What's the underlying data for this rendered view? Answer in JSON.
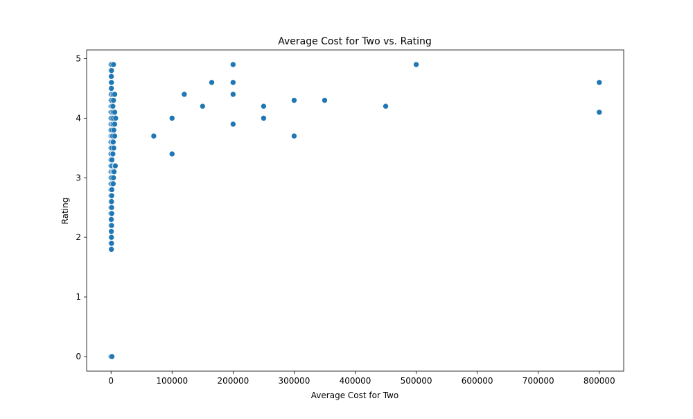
{
  "chart_data": {
    "type": "scatter",
    "title": "Average Cost for Two vs. Rating",
    "xlabel": "Average Cost for Two",
    "ylabel": "Rating",
    "xlim": [
      -40000,
      840000
    ],
    "ylim": [
      -0.245,
      5.145
    ],
    "xticks": [
      0,
      100000,
      200000,
      300000,
      400000,
      500000,
      600000,
      700000,
      800000
    ],
    "yticks": [
      0,
      1,
      2,
      3,
      4,
      5
    ],
    "grid": false,
    "legend": "none",
    "color": "#1f77b4",
    "points": [
      [
        0,
        0
      ],
      [
        1500,
        0
      ],
      [
        0,
        1.8
      ],
      [
        600,
        1.8
      ],
      [
        0,
        1.9
      ],
      [
        800,
        1.9
      ],
      [
        0,
        2.0
      ],
      [
        700,
        2.0
      ],
      [
        0,
        2.1
      ],
      [
        500,
        2.1
      ],
      [
        0,
        2.2
      ],
      [
        900,
        2.2
      ],
      [
        0,
        2.3
      ],
      [
        400,
        2.3
      ],
      [
        0,
        2.4
      ],
      [
        1200,
        2.4
      ],
      [
        0,
        2.5
      ],
      [
        1000,
        2.5
      ],
      [
        0,
        2.6
      ],
      [
        800,
        2.6
      ],
      [
        0,
        2.7
      ],
      [
        1100,
        2.7
      ],
      [
        0,
        2.8
      ],
      [
        1300,
        2.8
      ],
      [
        0,
        2.9
      ],
      [
        1500,
        2.9
      ],
      [
        0,
        3.0
      ],
      [
        1200,
        3.0
      ],
      [
        0,
        3.1
      ],
      [
        2000,
        3.1
      ],
      [
        0,
        3.2
      ],
      [
        1800,
        3.2
      ],
      [
        0,
        3.3
      ],
      [
        1500,
        3.3
      ],
      [
        0,
        3.4
      ],
      [
        2500,
        3.4
      ],
      [
        0,
        3.5
      ],
      [
        1500,
        3.5
      ],
      [
        0,
        3.6
      ],
      [
        2200,
        3.6
      ],
      [
        0,
        3.7
      ],
      [
        1800,
        3.7
      ],
      [
        0,
        3.8
      ],
      [
        2000,
        3.8
      ],
      [
        0,
        3.9
      ],
      [
        1800,
        3.9
      ],
      [
        0,
        4.0
      ],
      [
        1500,
        4.0
      ],
      [
        0,
        4.1
      ],
      [
        1600,
        4.1
      ],
      [
        0,
        4.2
      ],
      [
        1200,
        4.2
      ],
      [
        0,
        4.3
      ],
      [
        1000,
        4.3
      ],
      [
        0,
        4.4
      ],
      [
        900,
        4.4
      ],
      [
        0,
        4.5
      ],
      [
        600,
        4.5
      ],
      [
        0,
        4.6
      ],
      [
        700,
        4.6
      ],
      [
        0,
        4.7
      ],
      [
        500,
        4.7
      ],
      [
        0,
        4.8
      ],
      [
        800,
        4.8
      ],
      [
        0,
        4.9
      ],
      [
        1000,
        4.9
      ],
      [
        4000,
        4.9
      ],
      [
        3500,
        4.4
      ],
      [
        4000,
        4.3
      ],
      [
        3000,
        4.2
      ],
      [
        3500,
        4.1
      ],
      [
        4000,
        4.0
      ],
      [
        3500,
        3.9
      ],
      [
        2500,
        3.7
      ],
      [
        3500,
        3.6
      ],
      [
        3000,
        3.4
      ],
      [
        3500,
        3.1
      ],
      [
        4000,
        3.0
      ],
      [
        3500,
        2.9
      ],
      [
        4500,
        3.5
      ],
      [
        4500,
        3.8
      ],
      [
        6000,
        4.4
      ],
      [
        6000,
        4.1
      ],
      [
        6000,
        3.7
      ],
      [
        6000,
        3.2
      ],
      [
        6000,
        3.9
      ],
      [
        7500,
        4.0
      ],
      [
        5000,
        3.1
      ],
      [
        7000,
        3.2
      ],
      [
        70000,
        3.7
      ],
      [
        100000,
        4.0
      ],
      [
        100000,
        3.4
      ],
      [
        120000,
        4.4
      ],
      [
        150000,
        4.2
      ],
      [
        165000,
        4.6
      ],
      [
        200000,
        4.9
      ],
      [
        200000,
        4.6
      ],
      [
        200000,
        4.4
      ],
      [
        200000,
        3.9
      ],
      [
        250000,
        4.2
      ],
      [
        250000,
        4.0
      ],
      [
        300000,
        4.3
      ],
      [
        300000,
        3.7
      ],
      [
        350000,
        4.3
      ],
      [
        450000,
        4.2
      ],
      [
        500000,
        4.9
      ],
      [
        800000,
        4.6
      ],
      [
        800000,
        4.1
      ]
    ]
  }
}
